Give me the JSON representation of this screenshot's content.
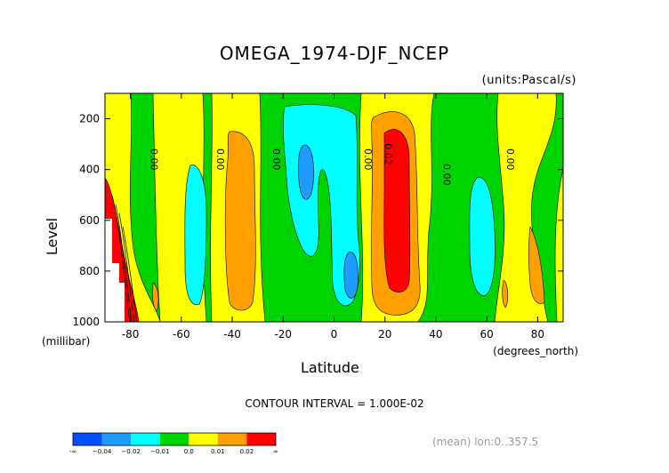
{
  "chart_data": {
    "type": "heatmap",
    "title": "OMEGA_1974-DJF_NCEP",
    "units_label": "(units:Pascal/s)",
    "xlabel": "Latitude",
    "ylabel": "Level",
    "x_units_label": "(degrees_north)",
    "y_units_label": "(millibar)",
    "xlim": [
      -90,
      90
    ],
    "ylim": [
      1000,
      100
    ],
    "x_ticks": [
      -80,
      -60,
      -40,
      -20,
      0,
      20,
      40,
      60,
      80
    ],
    "y_ticks": [
      200,
      400,
      600,
      800,
      1000
    ],
    "contour_labels": [
      {
        "text": "0.00",
        "x": -72,
        "y": 360
      },
      {
        "text": "0.00",
        "x": -46,
        "y": 360
      },
      {
        "text": "0.00",
        "x": -24,
        "y": 360
      },
      {
        "text": "0.00",
        "x": 12,
        "y": 360
      },
      {
        "text": "0.02",
        "x": 20,
        "y": 340
      },
      {
        "text": "0.00",
        "x": 43,
        "y": 420
      },
      {
        "text": "0.00",
        "x": 68,
        "y": 360
      }
    ],
    "contour_interval": "CONTOUR INTERVAL = 1.000E-02",
    "note": "(mean) lon:0..357.5",
    "colorbar": {
      "colors": [
        "#0050ff",
        "#1e9bff",
        "#00ffff",
        "#00d400",
        "#ffff00",
        "#ffa000",
        "#ff0000"
      ],
      "labels": [
        "-∞",
        "−0.04",
        "−0.02",
        "−0.01",
        "0.0",
        "0.01",
        "0.02",
        "∞"
      ]
    }
  },
  "colors": {
    "frame": "#000000",
    "contour_line": "#000000"
  }
}
